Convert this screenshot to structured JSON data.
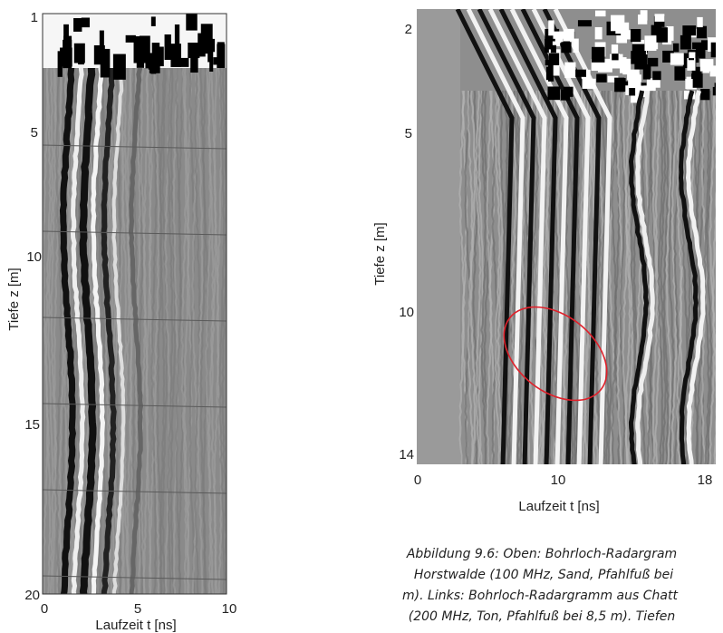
{
  "left_panel": {
    "y_label": "Tiefe z [m]",
    "x_label": "Laufzeit t [ns]",
    "yticks": [
      "1",
      "5",
      "10",
      "15",
      "20"
    ],
    "xticks": [
      "0",
      "5",
      "10"
    ]
  },
  "right_panel": {
    "y_label": "Tiefe z [m]",
    "x_label": "Laufzeit t [ns]",
    "yticks": [
      "2",
      "5",
      "10",
      "14"
    ],
    "xticks": [
      "0",
      "10",
      "18"
    ]
  },
  "caption": {
    "lines": [
      "Abbildung 9.6: Oben: Bohrloch-Radargram",
      "Horstwalde (100 MHz, Sand, Pfahlfuß bei",
      "m). Links: Bohrloch-Radargramm aus Chatt",
      "(200 MHz, Ton, Pfahlfuß bei 8,5 m). Tiefen"
    ]
  }
}
